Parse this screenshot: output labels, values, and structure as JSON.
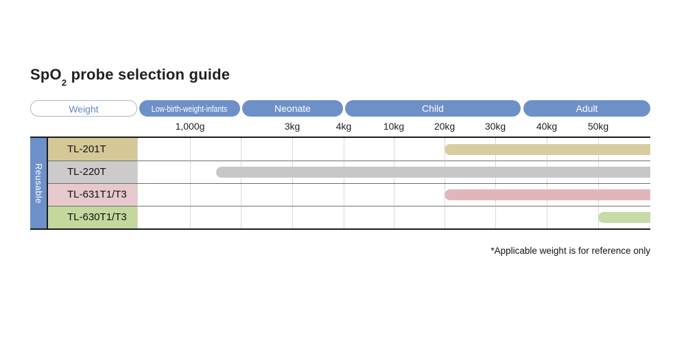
{
  "title": {
    "main": "SpO",
    "sub": "2",
    "rest": " probe selection guide"
  },
  "legend": {
    "weight_pill": "Weight",
    "categories": [
      {
        "label": "Low-birth-weight-infants",
        "css": "left:203px;width:147px"
      },
      {
        "label": "Neonate",
        "css": "left:353px;width:147px"
      },
      {
        "label": "Child",
        "css": "left:503px;width:256px"
      },
      {
        "label": "Adult",
        "css": "left:763px;width:185px"
      }
    ]
  },
  "scale": {
    "ticks": [
      {
        "label": "1,000g",
        "css": "left:237px"
      },
      {
        "label": "3kg",
        "css": "left:386px"
      },
      {
        "label": "4kg",
        "css": "left:461px"
      },
      {
        "label": "10kg",
        "css": "left:534px"
      },
      {
        "label": "20kg",
        "css": "left:608px"
      },
      {
        "label": "30kg",
        "css": "left:682px"
      },
      {
        "label": "40kg",
        "css": "left:757px"
      },
      {
        "label": "50kg",
        "css": "left:832px"
      }
    ]
  },
  "table": {
    "group_label": "Reusable",
    "gridlines": [
      "left:0px",
      "left:77px",
      "left:151px",
      "left:226px",
      "left:301px",
      "left:374px",
      "left:448px",
      "left:522px",
      "left:597px",
      "left:672px"
    ],
    "rows": [
      {
        "model": "TL-201T",
        "label_css": "top:0px;background:#d4c897",
        "bar_css": "top:9px;left:448px;width:300px;background:#d7cda1"
      },
      {
        "model": "TL-220T",
        "label_css": "top:33px;background:#cccaca",
        "bar_css": "top:42px;left:115px;width:633px;background:#c7c7c7"
      },
      {
        "model": "TL-631T1/T3",
        "label_css": "top:66px;background:#e6c8cd",
        "bar_css": "top:75px;left:448px;width:300px;background:#e0b6bd"
      },
      {
        "model": "TL-630T1/T3",
        "label_css": "top:99px;background:#c3d89c",
        "bar_css": "top:108px;left:672px;width:76px;background:#c6dba6"
      }
    ],
    "separators": [
      "top:33px",
      "top:66px",
      "top:99px"
    ]
  },
  "footnote": "*Applicable weight is for reference only",
  "colors": {
    "category_blue": "#6e90c8",
    "weight_text_blue": "#6286c1",
    "tan_bar": "#d7cda1",
    "gray_bar": "#c7c7c7",
    "pink_bar": "#e0b6bd",
    "green_bar": "#c6dba6",
    "border_dark": "#1a1a1a"
  },
  "chart_data": {
    "type": "bar",
    "title": "SpO2 probe selection guide",
    "orientation": "horizontal-range",
    "x_axis_ticks": [
      "1,000g",
      "3kg",
      "4kg",
      "10kg",
      "20kg",
      "30kg",
      "40kg",
      "50kg"
    ],
    "patient_categories": [
      {
        "name": "Low-birth-weight-infants",
        "range": "up to ~2kg"
      },
      {
        "name": "Neonate",
        "range": "~2kg to 4kg"
      },
      {
        "name": "Child",
        "range": "~4kg to ~35kg"
      },
      {
        "name": "Adult",
        "range": "~35kg and above"
      }
    ],
    "group": "Reusable",
    "rows": [
      {
        "model": "TL-201T",
        "applicable_from": "20kg",
        "applicable_to": "max (50kg+)",
        "bar_color": "#d7cda1"
      },
      {
        "model": "TL-220T",
        "applicable_from": "~1.5kg",
        "applicable_to": "max (50kg+)",
        "bar_color": "#c7c7c7"
      },
      {
        "model": "TL-631T1/T3",
        "applicable_from": "20kg",
        "applicable_to": "max (50kg+)",
        "bar_color": "#e0b6bd"
      },
      {
        "model": "TL-630T1/T3",
        "applicable_from": "50kg",
        "applicable_to": "max (50kg+)",
        "bar_color": "#c6dba6"
      }
    ],
    "grid": "dotted vertical gridlines at each weight tick",
    "legend_position": "top",
    "footnote": "*Applicable weight is for reference only"
  }
}
